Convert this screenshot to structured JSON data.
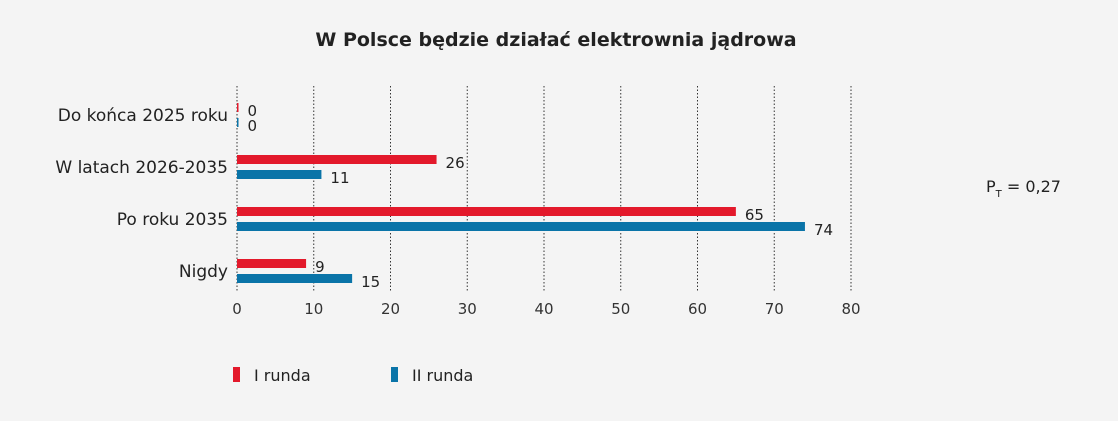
{
  "chart_data": {
    "type": "bar",
    "orientation": "horizontal",
    "title": "W Polsce będzie działać elektrownia jądrowa",
    "categories": [
      "Do końca 2025 roku",
      "W latach 2026-2035",
      "Po roku 2035",
      "Nigdy"
    ],
    "series": [
      {
        "name": "I runda",
        "color": "#e3192b",
        "values": [
          0,
          26,
          65,
          9
        ]
      },
      {
        "name": "II runda",
        "color": "#0a74a8",
        "values": [
          0,
          11,
          74,
          15
        ]
      }
    ],
    "xlim": [
      0,
      80
    ],
    "xticks": [
      0,
      10,
      20,
      30,
      40,
      50,
      60,
      70,
      80
    ],
    "grid": "vertical dotted",
    "legend": "bottom-left",
    "note": {
      "label": "P",
      "sub": "T",
      "value": " = 0,27"
    }
  }
}
